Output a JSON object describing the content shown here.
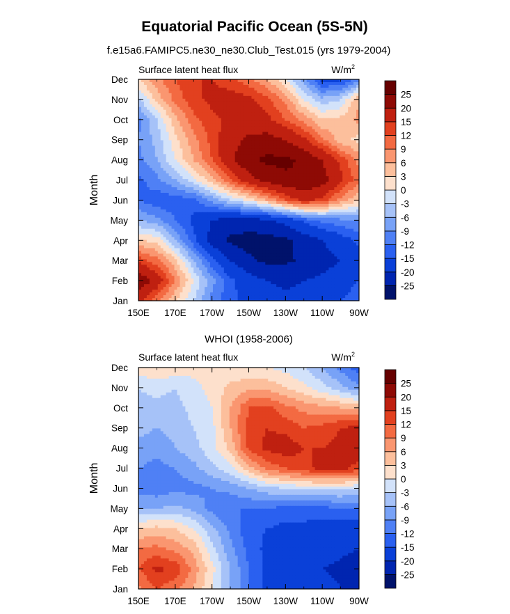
{
  "title": "Equatorial Pacific Ocean (5S-5N)",
  "units_main": "W/m",
  "units_sup": "2",
  "chart_data": [
    {
      "type": "heatmap",
      "title": "f.e15a6.FAMIPC5.ne30_ne30.Club_Test.015 (yrs 1979-2004)",
      "left_label": "Surface latent heat flux",
      "ylabel": "Month",
      "xlabel": "",
      "x_ticks": [
        "150E",
        "170E",
        "170W",
        "150W",
        "130W",
        "110W",
        "90W"
      ],
      "y_ticks": [
        "Jan",
        "Feb",
        "Mar",
        "Apr",
        "May",
        "Jun",
        "Jul",
        "Aug",
        "Sep",
        "Oct",
        "Nov",
        "Dec"
      ],
      "xlim": [
        150,
        270
      ],
      "ylim": [
        1,
        12
      ],
      "levels": [
        -25,
        -20,
        -15,
        -12,
        -9,
        -6,
        -3,
        0,
        3,
        6,
        9,
        12,
        15,
        20,
        25
      ],
      "level_labels": [
        "-25",
        "-20",
        "-15",
        "-12",
        "-9",
        "-6",
        "-3",
        "0",
        "3",
        "6",
        "9",
        "12",
        "15",
        "20",
        "25"
      ],
      "colors": [
        "#00126b",
        "#0025b0",
        "#0a40d8",
        "#2a60f0",
        "#4f80f5",
        "#78a2f7",
        "#a6c2f8",
        "#d2e2fa",
        "#fde0cc",
        "#fcbf9c",
        "#fa9670",
        "#f36a42",
        "#e2401f",
        "#bf2010",
        "#8e0a05",
        "#660000"
      ],
      "lon": [
        150,
        160,
        170,
        180,
        190,
        200,
        210,
        220,
        230,
        240,
        250,
        260,
        270
      ],
      "values": [
        [
          17,
          10,
          3,
          -3,
          -10,
          -14,
          -16,
          -18,
          -19,
          -18,
          -17,
          -15,
          -13
        ],
        [
          24,
          18,
          9,
          0,
          -8,
          -14,
          -18,
          -20,
          -21,
          -20,
          -19,
          -17,
          -15
        ],
        [
          14,
          10,
          4,
          -6,
          -14,
          -20,
          -24,
          -26,
          -26,
          -24,
          -22,
          -20,
          -18
        ],
        [
          3,
          2,
          -6,
          -14,
          -22,
          -26,
          -27,
          -27,
          -26,
          -23,
          -20,
          -17,
          -14
        ],
        [
          -6,
          -8,
          -12,
          -16,
          -20,
          -22,
          -22,
          -21,
          -18,
          -14,
          -11,
          -10,
          -9
        ],
        [
          -12,
          -14,
          -14,
          -13,
          -8,
          -3,
          1,
          6,
          12,
          16,
          14,
          8,
          3
        ],
        [
          -13,
          -10,
          -6,
          -1,
          5,
          12,
          18,
          22,
          24,
          25,
          22,
          16,
          10
        ],
        [
          -10,
          -6,
          0,
          6,
          12,
          19,
          24,
          26,
          26,
          24,
          20,
          14,
          8
        ],
        [
          -9,
          -5,
          2,
          8,
          13,
          18,
          21,
          22,
          20,
          16,
          10,
          4,
          2
        ],
        [
          -10,
          -3,
          5,
          11,
          14,
          16,
          17,
          16,
          12,
          8,
          3,
          4,
          7
        ],
        [
          -4,
          4,
          10,
          14,
          16,
          17,
          16,
          13,
          8,
          0,
          -5,
          -3,
          6
        ],
        [
          3,
          8,
          12,
          15,
          15,
          13,
          10,
          6,
          0,
          -8,
          -16,
          -16,
          -10
        ]
      ]
    },
    {
      "type": "heatmap",
      "title": "WHOI (1958-2006)",
      "left_label": "Surface latent heat flux",
      "ylabel": "Month",
      "xlabel": "",
      "x_ticks": [
        "150E",
        "170E",
        "170W",
        "150W",
        "130W",
        "110W",
        "90W"
      ],
      "y_ticks": [
        "Jan",
        "Feb",
        "Mar",
        "Apr",
        "May",
        "Jun",
        "Jul",
        "Aug",
        "Sep",
        "Oct",
        "Nov",
        "Dec"
      ],
      "xlim": [
        150,
        270
      ],
      "ylim": [
        1,
        12
      ],
      "levels": [
        -25,
        -20,
        -15,
        -12,
        -9,
        -6,
        -3,
        0,
        3,
        6,
        9,
        12,
        15,
        20,
        25
      ],
      "level_labels": [
        "-25",
        "-20",
        "-15",
        "-12",
        "-9",
        "-6",
        "-3",
        "0",
        "3",
        "6",
        "9",
        "12",
        "15",
        "20",
        "25"
      ],
      "colors": [
        "#00126b",
        "#0025b0",
        "#0a40d8",
        "#2a60f0",
        "#4f80f5",
        "#78a2f7",
        "#a6c2f8",
        "#d2e2fa",
        "#fde0cc",
        "#fcbf9c",
        "#fa9670",
        "#f36a42",
        "#e2401f",
        "#bf2010",
        "#8e0a05",
        "#660000"
      ],
      "lon": [
        150,
        160,
        170,
        180,
        190,
        200,
        210,
        220,
        230,
        240,
        250,
        260,
        270
      ],
      "values": [
        [
          8,
          12,
          10,
          6,
          0,
          -6,
          -12,
          -16,
          -17,
          -18,
          -18,
          -20,
          -22
        ],
        [
          12,
          16,
          14,
          8,
          1,
          -6,
          -12,
          -16,
          -18,
          -19,
          -20,
          -21,
          -22
        ],
        [
          9,
          10,
          8,
          5,
          -2,
          -8,
          -13,
          -16,
          -17,
          -17,
          -18,
          -19,
          -20
        ],
        [
          3,
          4,
          3,
          0,
          -5,
          -10,
          -14,
          -15,
          -16,
          -16,
          -17,
          -17,
          -18
        ],
        [
          -6,
          -6,
          -5,
          -7,
          -10,
          -12,
          -12,
          -12,
          -13,
          -13,
          -13,
          -12,
          -12
        ],
        [
          -10,
          -11,
          -10,
          -10,
          -9,
          -8,
          -6,
          -4,
          -3,
          -2,
          -2,
          -2,
          -3
        ],
        [
          -9,
          -10,
          -9,
          -7,
          -4,
          -1,
          5,
          10,
          12,
          14,
          16,
          16,
          14
        ],
        [
          -7,
          -8,
          -6,
          -4,
          -1,
          4,
          13,
          16,
          17,
          15,
          15,
          16,
          17
        ],
        [
          -5,
          -6,
          -5,
          -3,
          -1,
          6,
          13,
          15,
          14,
          12,
          13,
          15,
          16
        ],
        [
          -4,
          -4,
          -4,
          -2,
          0,
          6,
          12,
          13,
          10,
          8,
          7,
          6,
          5
        ],
        [
          -3,
          -2,
          -3,
          -1,
          1,
          4,
          5,
          5,
          3,
          1,
          -2,
          -5,
          -8
        ],
        [
          2,
          3,
          2,
          1,
          1,
          1,
          0,
          0,
          -1,
          -3,
          -6,
          -10,
          -14
        ]
      ]
    }
  ]
}
